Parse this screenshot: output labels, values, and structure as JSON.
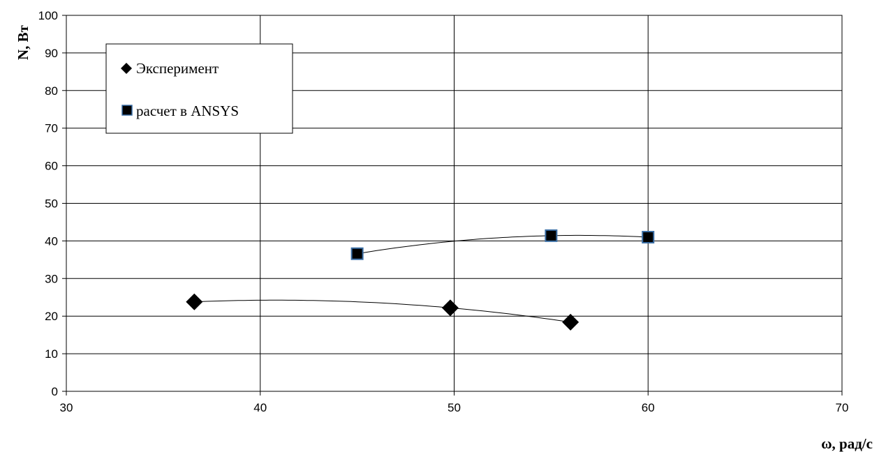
{
  "chart_data": {
    "type": "scatter",
    "title": "",
    "xlabel": "ω, рад/с",
    "ylabel": "N, Вт",
    "xlim": [
      30,
      70
    ],
    "ylim": [
      0,
      100
    ],
    "x_ticks": [
      30,
      40,
      50,
      60,
      70
    ],
    "y_ticks": [
      0,
      10,
      20,
      30,
      40,
      50,
      60,
      70,
      80,
      90,
      100
    ],
    "grid": true,
    "legend_position": "top-left",
    "series": [
      {
        "name": "Эксперимент",
        "marker": "diamond",
        "color": "#000000",
        "trendline": "polynomial",
        "x": [
          36.6,
          49.8,
          56.0
        ],
        "y": [
          23.8,
          22.2,
          18.4
        ]
      },
      {
        "name": "расчет в ANSYS",
        "marker": "square",
        "color": "#000000",
        "edge_color": "#3a6ea5",
        "trendline": "polynomial",
        "x": [
          45.0,
          55.0,
          60.0
        ],
        "y": [
          36.6,
          41.4,
          41.0
        ]
      }
    ]
  }
}
